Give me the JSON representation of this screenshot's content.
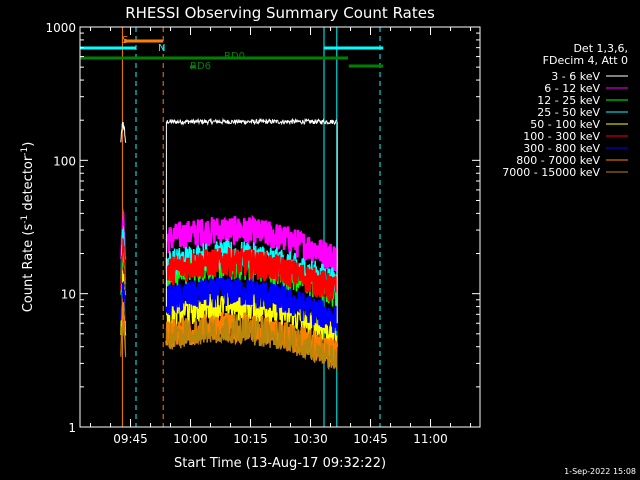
{
  "chart_data": {
    "type": "line",
    "title": "RHESSI Observing Summary Count Rates",
    "xlabel": "Start Time (13-Aug-17 09:32:22)",
    "ylabel_main": "Count Rate (s",
    "ylabel_sup1": "-1",
    "ylabel_mid": " detector",
    "ylabel_sup2": "-1",
    "ylabel_end": ")",
    "yscale": "log",
    "ylim": [
      1,
      1000
    ],
    "xlim_minutes": [
      0,
      100
    ],
    "y_ticks": [
      {
        "v": 1,
        "label": "1"
      },
      {
        "v": 10,
        "label": "10"
      },
      {
        "v": 100,
        "label": "100"
      },
      {
        "v": 1000,
        "label": "1000"
      }
    ],
    "x_ticks": [
      {
        "m": 12.63,
        "label": "09:45"
      },
      {
        "m": 27.63,
        "label": "10:00"
      },
      {
        "m": 42.63,
        "label": "10:15"
      },
      {
        "m": 57.63,
        "label": "10:30"
      },
      {
        "m": 72.63,
        "label": "10:45"
      },
      {
        "m": 87.63,
        "label": "11:00"
      }
    ],
    "legend_header": [
      "Det 1,3,6,",
      "FDecim 4, Att 0"
    ],
    "series": [
      {
        "name": "3 - 6 keV",
        "color": "#ffffff",
        "burst": 190,
        "level": 195
      },
      {
        "name": "6 - 12 keV",
        "color": "#ff00ff",
        "burst": 40,
        "level": 26
      },
      {
        "name": "12 - 25 keV",
        "color": "#00ff00",
        "burst": 22,
        "level": 14
      },
      {
        "name": "25 - 50 keV",
        "color": "#00ffff",
        "burst": 30,
        "level": 17
      },
      {
        "name": "50 - 100 keV",
        "color": "#ffff00",
        "burst": 14,
        "level": 7
      },
      {
        "name": "100 - 300 keV",
        "color": "#ff0000",
        "burst": 25,
        "level": 15
      },
      {
        "name": "300 - 800 keV",
        "color": "#0000ff",
        "burst": 12,
        "level": 9
      },
      {
        "name": "800 - 7000 keV",
        "color": "#ff8000",
        "burst": 8,
        "level": 5
      },
      {
        "name": "7000 - 15000 keV",
        "color": "#b8860b",
        "burst": 6,
        "level": 4.8
      }
    ],
    "segments": [
      {
        "start": 10.2,
        "end": 11.6
      },
      {
        "start": 21.6,
        "end": 64.3
      }
    ],
    "flags": [
      {
        "label": "S",
        "color": "#ff8000",
        "m_start": 11.0,
        "m_end": 20.8
      },
      {
        "label": "N",
        "color": "#00ffff",
        "m_start": 0,
        "m_end": 14.0
      },
      {
        "label": "RD0",
        "color": "#008000",
        "m_start": 0,
        "m_end": 67.0
      },
      {
        "label": "RD6",
        "color": "#008000",
        "m_start": 27.5,
        "m_end": 29.0
      }
    ],
    "vlines": [
      {
        "m": 0,
        "color": "#00ffff",
        "style": "solid"
      },
      {
        "m": 10.6,
        "color": "#ff8000",
        "style": "solid"
      },
      {
        "m": 14.0,
        "color": "#00ffff",
        "style": "dashed"
      },
      {
        "m": 20.8,
        "color": "#ff8000",
        "style": "dashed"
      },
      {
        "m": 61.0,
        "color": "#00ffff",
        "style": "solid"
      },
      {
        "m": 64.2,
        "color": "#00ffff",
        "style": "solid"
      },
      {
        "m": 75.0,
        "color": "#00ffff",
        "style": "dashed"
      }
    ],
    "footer": "1-Sep-2022 15:08",
    "grid": false
  }
}
